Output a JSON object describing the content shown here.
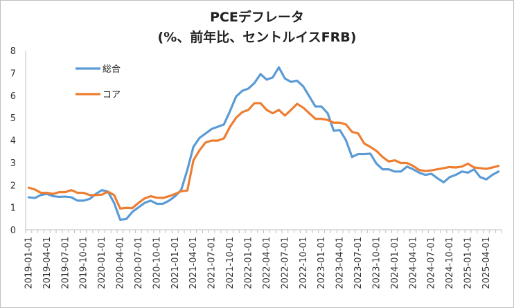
{
  "chart_data": {
    "type": "line",
    "title": [
      "PCEデフレータ",
      "(%、前年比、セントルイスFRB)"
    ],
    "ylim": [
      0,
      8
    ],
    "yticks": [
      0,
      1,
      2,
      3,
      4,
      5,
      6,
      7,
      8
    ],
    "grid": false,
    "legend_position": "top-left",
    "x": [
      "2019-01-01",
      "2019-02-01",
      "2019-03-01",
      "2019-04-01",
      "2019-05-01",
      "2019-06-01",
      "2019-07-01",
      "2019-08-01",
      "2019-09-01",
      "2019-10-01",
      "2019-11-01",
      "2019-12-01",
      "2020-01-01",
      "2020-02-01",
      "2020-03-01",
      "2020-04-01",
      "2020-05-01",
      "2020-06-01",
      "2020-07-01",
      "2020-08-01",
      "2020-09-01",
      "2020-10-01",
      "2020-11-01",
      "2020-12-01",
      "2021-01-01",
      "2021-02-01",
      "2021-03-01",
      "2021-04-01",
      "2021-05-01",
      "2021-06-01",
      "2021-07-01",
      "2021-08-01",
      "2021-09-01",
      "2021-10-01",
      "2021-11-01",
      "2021-12-01",
      "2022-01-01",
      "2022-02-01",
      "2022-03-01",
      "2022-04-01",
      "2022-05-01",
      "2022-06-01",
      "2022-07-01",
      "2022-08-01",
      "2022-09-01",
      "2022-10-01",
      "2022-11-01",
      "2022-12-01",
      "2023-01-01",
      "2023-02-01",
      "2023-03-01",
      "2023-04-01",
      "2023-05-01",
      "2023-06-01",
      "2023-07-01",
      "2023-08-01",
      "2023-09-01",
      "2023-10-01",
      "2023-11-01",
      "2023-12-01",
      "2024-01-01",
      "2024-02-01",
      "2024-03-01",
      "2024-04-01",
      "2024-05-01",
      "2024-06-01",
      "2024-07-01",
      "2024-08-01",
      "2024-09-01",
      "2024-10-01",
      "2024-11-01",
      "2024-12-01",
      "2025-01-01",
      "2025-02-01",
      "2025-03-01",
      "2025-04-01",
      "2025-05-01",
      "2025-06-01"
    ],
    "xtick_labels": [
      "2019-01-01",
      "2019-04-01",
      "2019-07-01",
      "2019-10-01",
      "2020-01-01",
      "2020-04-01",
      "2020-07-01",
      "2020-10-01",
      "2021-01-01",
      "2021-04-01",
      "2021-07-01",
      "2021-10-01",
      "2022-01-01",
      "2022-04-01",
      "2022-07-01",
      "2022-10-01",
      "2023-01-01",
      "2023-04-01",
      "2023-07-01",
      "2023-10-01",
      "2024-01-01",
      "2024-04-01",
      "2024-07-01",
      "2024-10-01",
      "2025-01-01",
      "2025-04-01"
    ],
    "series": [
      {
        "name": "総合",
        "color": "#5b9bd5",
        "values": [
          1.45,
          1.42,
          1.55,
          1.6,
          1.5,
          1.47,
          1.48,
          1.45,
          1.3,
          1.3,
          1.38,
          1.6,
          1.77,
          1.7,
          1.2,
          0.45,
          0.48,
          0.8,
          1.0,
          1.2,
          1.3,
          1.16,
          1.16,
          1.3,
          1.5,
          1.78,
          2.67,
          3.7,
          4.1,
          4.3,
          4.5,
          4.6,
          4.7,
          5.3,
          5.95,
          6.2,
          6.3,
          6.55,
          6.95,
          6.7,
          6.8,
          7.25,
          6.75,
          6.6,
          6.65,
          6.4,
          5.95,
          5.5,
          5.5,
          5.2,
          4.42,
          4.45,
          4.0,
          3.25,
          3.38,
          3.38,
          3.4,
          2.95,
          2.7,
          2.7,
          2.6,
          2.6,
          2.82,
          2.7,
          2.55,
          2.45,
          2.5,
          2.3,
          2.12,
          2.35,
          2.45,
          2.6,
          2.55,
          2.7,
          2.35,
          2.25,
          2.45,
          2.6
        ]
      },
      {
        "name": "コア",
        "color": "#ed7d31",
        "values": [
          1.88,
          1.8,
          1.65,
          1.65,
          1.6,
          1.68,
          1.68,
          1.77,
          1.65,
          1.65,
          1.55,
          1.55,
          1.57,
          1.7,
          1.55,
          0.95,
          0.98,
          0.97,
          1.2,
          1.4,
          1.5,
          1.43,
          1.42,
          1.5,
          1.6,
          1.72,
          1.75,
          3.1,
          3.55,
          3.9,
          3.98,
          3.98,
          4.08,
          4.6,
          5.0,
          5.25,
          5.35,
          5.65,
          5.65,
          5.35,
          5.2,
          5.35,
          5.1,
          5.35,
          5.62,
          5.45,
          5.2,
          4.95,
          4.95,
          4.9,
          4.78,
          4.78,
          4.7,
          4.37,
          4.3,
          3.85,
          3.7,
          3.52,
          3.25,
          3.05,
          3.1,
          2.98,
          2.98,
          2.85,
          2.67,
          2.62,
          2.65,
          2.7,
          2.75,
          2.8,
          2.78,
          2.82,
          2.95,
          2.78,
          2.75,
          2.72,
          2.78,
          2.85
        ]
      }
    ]
  }
}
